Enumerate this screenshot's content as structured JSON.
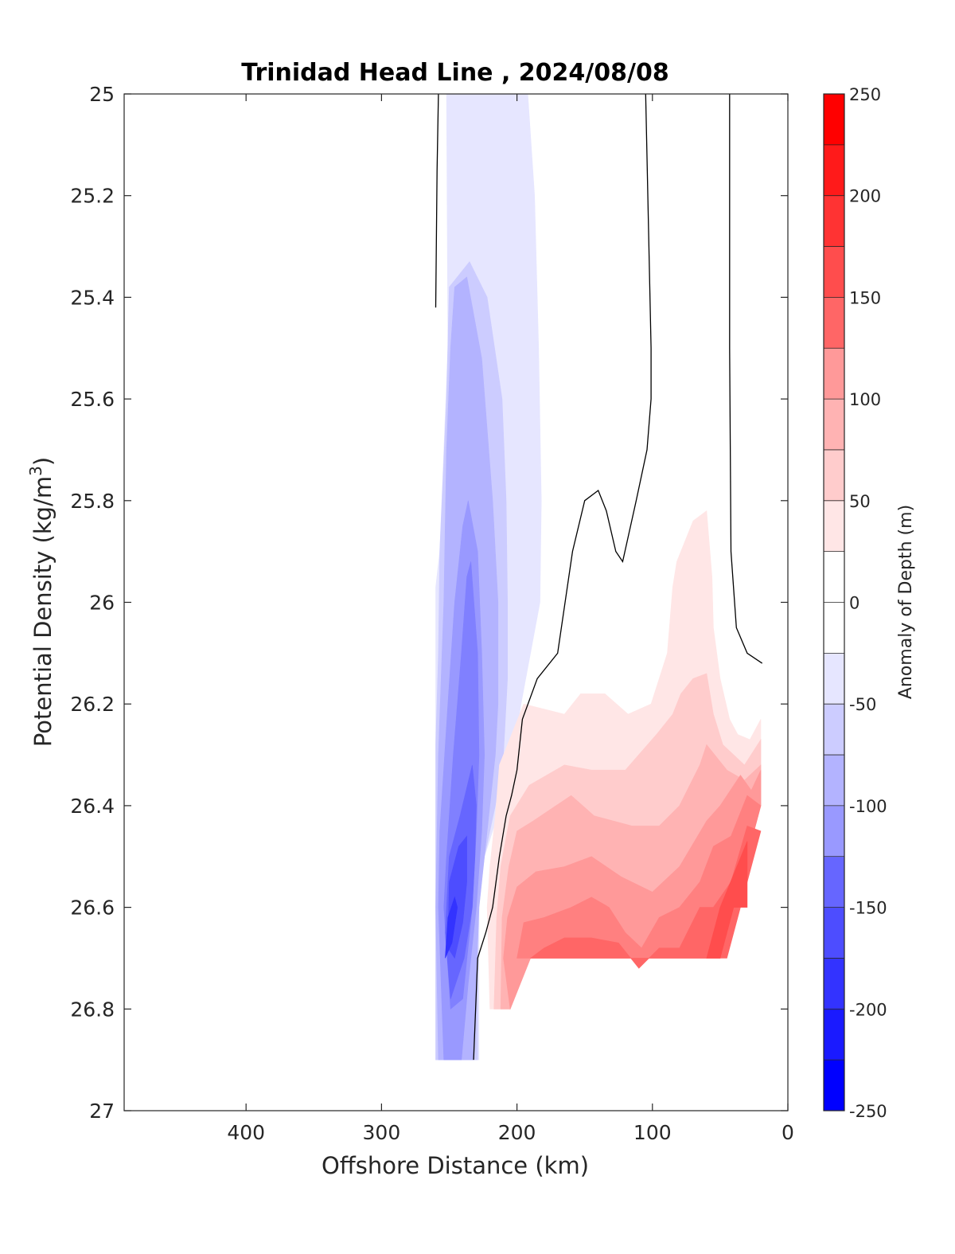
{
  "chart_data": {
    "type": "contour",
    "title": "Trinidad Head Line , 2024/08/08",
    "xlabel": "Offshore Distance (km)",
    "ylabel_main": "Potential Density (kg/m",
    "ylabel_sup": "3",
    "ylabel_close": ")",
    "xlim": [
      490,
      0
    ],
    "ylim": [
      25,
      27
    ],
    "y_reversed": true,
    "x_reversed": true,
    "x_ticks": [
      400,
      300,
      200,
      100,
      0
    ],
    "x_tick_labels": [
      "400",
      "300",
      "200",
      "100",
      "0"
    ],
    "y_ticks": [
      25,
      25.2,
      25.4,
      25.6,
      25.8,
      26,
      26.2,
      26.4,
      26.6,
      26.8,
      27
    ],
    "y_tick_labels": [
      "25",
      "25.2",
      "25.4",
      "25.6",
      "25.8",
      "26",
      "26.2",
      "26.4",
      "26.6",
      "26.8",
      "27"
    ],
    "colorbar": {
      "label": "Anomaly of Depth (m)",
      "range": [
        -250,
        250
      ],
      "step": 25,
      "ticks": [
        -250,
        -200,
        -150,
        -100,
        -50,
        0,
        50,
        100,
        150,
        200,
        250
      ],
      "tick_labels": [
        "-250",
        "-200",
        "-150",
        "-100",
        "-50",
        "0",
        "50",
        "100",
        "150",
        "200",
        "250"
      ],
      "colors": [
        "#0000ff",
        "#1a1aff",
        "#3333ff",
        "#4d4dff",
        "#6666ff",
        "#8080ff",
        "#9999ff",
        "#b3b3ff",
        "#ccccff",
        "#e6e6ff",
        "#ffffff",
        "#ffffff",
        "#ffe6e6",
        "#ffcccc",
        "#ffb3b3",
        "#ff9999",
        "#ff8080",
        "#ff6666",
        "#ff4d4d",
        "#ff3333",
        "#ff1a1a",
        "#ff0000"
      ]
    },
    "filled_regions": [
      {
        "level": -25,
        "color": "#e6e6ff",
        "points": [
          [
            217,
            25
          ],
          [
            192,
            25
          ],
          [
            187,
            25.2
          ],
          [
            184,
            25.5
          ],
          [
            182,
            25.8
          ],
          [
            183,
            26.0
          ],
          [
            190,
            26.1
          ],
          [
            197,
            26.2
          ],
          [
            203,
            26.3
          ],
          [
            212,
            26.4
          ],
          [
            224,
            26.5
          ],
          [
            228,
            26.6
          ],
          [
            228,
            26.9
          ],
          [
            260,
            26.9
          ],
          [
            260,
            25.97
          ],
          [
            257,
            25.9
          ],
          [
            251,
            25.5
          ],
          [
            252,
            25
          ]
        ]
      },
      {
        "level": -50,
        "color": "#ccccff",
        "points": [
          [
            250,
            25.38
          ],
          [
            235,
            25.33
          ],
          [
            222,
            25.4
          ],
          [
            211,
            25.6
          ],
          [
            208,
            25.8
          ],
          [
            207,
            26.0
          ],
          [
            207,
            26.15
          ],
          [
            210,
            26.3
          ],
          [
            216,
            26.4
          ],
          [
            224,
            26.5
          ],
          [
            229,
            26.6
          ],
          [
            229,
            26.9
          ],
          [
            260,
            26.9
          ],
          [
            260,
            26.28
          ],
          [
            258,
            26.1
          ],
          [
            257,
            25.9
          ],
          [
            252,
            25.6
          ]
        ]
      },
      {
        "level": -75,
        "color": "#b3b3ff",
        "points": [
          [
            246,
            25.38
          ],
          [
            237,
            25.36
          ],
          [
            226,
            25.52
          ],
          [
            218,
            25.8
          ],
          [
            214,
            26.0
          ],
          [
            214,
            26.2
          ],
          [
            216,
            26.3
          ],
          [
            222,
            26.45
          ],
          [
            228,
            26.6
          ],
          [
            232,
            26.9
          ],
          [
            258,
            26.9
          ],
          [
            260,
            26.6
          ],
          [
            258,
            26.3
          ],
          [
            254,
            26.0
          ],
          [
            252,
            25.7
          ],
          [
            249,
            25.5
          ]
        ]
      },
      {
        "level": -100,
        "color": "#9999ff",
        "points": [
          [
            236,
            25.8
          ],
          [
            229,
            25.9
          ],
          [
            226,
            26.1
          ],
          [
            224,
            26.3
          ],
          [
            226,
            26.45
          ],
          [
            230,
            26.6
          ],
          [
            236,
            26.75
          ],
          [
            241,
            26.9
          ],
          [
            254,
            26.9
          ],
          [
            258,
            26.6
          ],
          [
            257,
            26.45
          ],
          [
            251,
            26.2
          ],
          [
            246,
            26.0
          ],
          [
            240,
            25.85
          ]
        ]
      },
      {
        "level": -125,
        "color": "#8080ff",
        "points": [
          [
            234,
            25.92
          ],
          [
            229,
            26.1
          ],
          [
            228,
            26.3
          ],
          [
            230,
            26.45
          ],
          [
            233,
            26.6
          ],
          [
            240,
            26.78
          ],
          [
            249,
            26.8
          ],
          [
            254,
            26.6
          ],
          [
            252,
            26.5
          ],
          [
            247,
            26.3
          ],
          [
            241,
            26.1
          ],
          [
            237,
            25.95
          ]
        ]
      },
      {
        "level": -150,
        "color": "#6666ff",
        "points": [
          [
            233,
            26.32
          ],
          [
            230,
            26.4
          ],
          [
            231,
            26.5
          ],
          [
            233,
            26.6
          ],
          [
            239,
            26.7
          ],
          [
            249,
            26.78
          ],
          [
            253,
            26.65
          ],
          [
            250,
            26.5
          ],
          [
            242,
            26.42
          ]
        ]
      },
      {
        "level": -175,
        "color": "#4d4dff",
        "points": [
          [
            237,
            26.46
          ],
          [
            237,
            26.55
          ],
          [
            240,
            26.63
          ],
          [
            246,
            26.7
          ],
          [
            251,
            26.68
          ],
          [
            250,
            26.55
          ],
          [
            243,
            26.48
          ]
        ]
      },
      {
        "level": -200,
        "color": "#3333ff",
        "points": [
          [
            244,
            26.6
          ],
          [
            248,
            26.67
          ],
          [
            253,
            26.7
          ],
          [
            251,
            26.62
          ],
          [
            246,
            26.58
          ]
        ]
      },
      {
        "level": 25,
        "color": "#ffe6e6",
        "points": [
          [
            70,
            25.84
          ],
          [
            60,
            25.82
          ],
          [
            56,
            25.95
          ],
          [
            55,
            26.05
          ],
          [
            50,
            26.15
          ],
          [
            43,
            26.23
          ],
          [
            37,
            26.26
          ],
          [
            28,
            26.27
          ],
          [
            20,
            26.23
          ],
          [
            20,
            26.4
          ],
          [
            50,
            26.7
          ],
          [
            190,
            26.7
          ],
          [
            205,
            26.8
          ],
          [
            220,
            26.8
          ],
          [
            222,
            26.6
          ],
          [
            220,
            26.52
          ],
          [
            216,
            26.42
          ],
          [
            213,
            26.32
          ],
          [
            195,
            26.2
          ],
          [
            165,
            26.22
          ],
          [
            153,
            26.18
          ],
          [
            135,
            26.18
          ],
          [
            118,
            26.22
          ],
          [
            101,
            26.2
          ],
          [
            89,
            26.1
          ],
          [
            85,
            25.97
          ],
          [
            82,
            25.92
          ]
        ]
      },
      {
        "level": 50,
        "color": "#ffcccc",
        "points": [
          [
            70,
            26.15
          ],
          [
            60,
            26.14
          ],
          [
            55,
            26.22
          ],
          [
            48,
            26.28
          ],
          [
            32,
            26.32
          ],
          [
            20,
            26.27
          ],
          [
            20,
            26.4
          ],
          [
            50,
            26.7
          ],
          [
            190,
            26.7
          ],
          [
            205,
            26.8
          ],
          [
            217,
            26.8
          ],
          [
            215,
            26.62
          ],
          [
            212,
            26.52
          ],
          [
            205,
            26.42
          ],
          [
            191,
            26.36
          ],
          [
            165,
            26.32
          ],
          [
            145,
            26.33
          ],
          [
            120,
            26.33
          ],
          [
            97,
            26.26
          ],
          [
            85,
            26.22
          ],
          [
            79,
            26.18
          ]
        ]
      },
      {
        "level": 75,
        "color": "#ffb3b3",
        "points": [
          [
            60,
            26.28
          ],
          [
            45,
            26.33
          ],
          [
            32,
            26.35
          ],
          [
            20,
            26.32
          ],
          [
            20,
            26.4
          ],
          [
            50,
            26.7
          ],
          [
            190,
            26.7
          ],
          [
            205,
            26.8
          ],
          [
            212,
            26.8
          ],
          [
            211,
            26.62
          ],
          [
            206,
            26.52
          ],
          [
            200,
            26.45
          ],
          [
            188,
            26.43
          ],
          [
            160,
            26.38
          ],
          [
            143,
            26.42
          ],
          [
            115,
            26.44
          ],
          [
            95,
            26.44
          ],
          [
            80,
            26.4
          ],
          [
            65,
            26.32
          ]
        ]
      },
      {
        "level": 100,
        "color": "#ff9999",
        "points": [
          [
            35,
            26.34
          ],
          [
            27,
            26.37
          ],
          [
            20,
            26.33
          ],
          [
            20,
            26.4
          ],
          [
            50,
            26.7
          ],
          [
            190,
            26.7
          ],
          [
            205,
            26.8
          ],
          [
            210,
            26.7
          ],
          [
            207,
            26.62
          ],
          [
            200,
            26.56
          ],
          [
            186,
            26.53
          ],
          [
            165,
            26.52
          ],
          [
            145,
            26.5
          ],
          [
            123,
            26.54
          ],
          [
            100,
            26.57
          ],
          [
            80,
            26.52
          ],
          [
            60,
            26.43
          ],
          [
            50,
            26.4
          ]
        ]
      },
      {
        "level": 125,
        "color": "#ff8080",
        "points": [
          [
            30,
            26.38
          ],
          [
            20,
            26.4
          ],
          [
            50,
            26.7
          ],
          [
            190,
            26.7
          ],
          [
            200,
            26.7
          ],
          [
            195,
            26.63
          ],
          [
            180,
            26.62
          ],
          [
            160,
            26.6
          ],
          [
            145,
            26.58
          ],
          [
            132,
            26.6
          ],
          [
            120,
            26.65
          ],
          [
            108,
            26.68
          ],
          [
            95,
            26.62
          ],
          [
            80,
            26.6
          ],
          [
            65,
            26.55
          ],
          [
            55,
            26.48
          ],
          [
            42,
            26.46
          ]
        ]
      },
      {
        "level": 150,
        "color": "#ff6666",
        "points": [
          [
            30,
            26.44
          ],
          [
            20,
            26.45
          ],
          [
            45,
            26.7
          ],
          [
            190,
            26.7
          ],
          [
            180,
            26.68
          ],
          [
            165,
            26.66
          ],
          [
            145,
            26.66
          ],
          [
            125,
            26.67
          ],
          [
            110,
            26.72
          ],
          [
            95,
            26.68
          ],
          [
            80,
            26.68
          ],
          [
            65,
            26.6
          ],
          [
            55,
            26.6
          ],
          [
            42,
            26.55
          ]
        ]
      },
      {
        "level": 175,
        "color": "#ff4d4d",
        "points": [
          [
            30,
            26.47
          ],
          [
            30,
            26.6
          ],
          [
            40,
            26.6
          ],
          [
            50,
            26.7
          ],
          [
            60,
            26.7
          ],
          [
            50,
            26.6
          ]
        ]
      }
    ],
    "contour_lines": [
      {
        "level": 0,
        "points": [
          [
            260,
            25.42
          ],
          [
            259,
            25.15
          ],
          [
            258,
            25
          ]
        ]
      },
      {
        "level": 0,
        "points": [
          [
            105,
            25
          ],
          [
            101,
            25.5
          ],
          [
            101,
            25.6
          ],
          [
            104,
            25.7
          ],
          [
            112,
            25.8
          ],
          [
            122,
            25.92
          ],
          [
            127,
            25.9
          ],
          [
            134,
            25.82
          ],
          [
            140,
            25.78
          ],
          [
            150,
            25.8
          ],
          [
            159,
            25.9
          ],
          [
            170,
            26.1
          ],
          [
            185,
            26.15
          ],
          [
            196,
            26.23
          ],
          [
            200,
            26.33
          ],
          [
            204,
            26.38
          ],
          [
            208,
            26.42
          ],
          [
            213,
            26.5
          ],
          [
            218,
            26.6
          ],
          [
            223,
            26.65
          ],
          [
            229,
            26.7
          ],
          [
            232,
            26.9
          ]
        ]
      },
      {
        "level": 0,
        "points": [
          [
            43,
            25
          ],
          [
            43,
            25.5
          ],
          [
            42,
            25.9
          ],
          [
            38,
            26.05
          ],
          [
            30,
            26.1
          ],
          [
            19,
            26.12
          ]
        ]
      }
    ]
  }
}
